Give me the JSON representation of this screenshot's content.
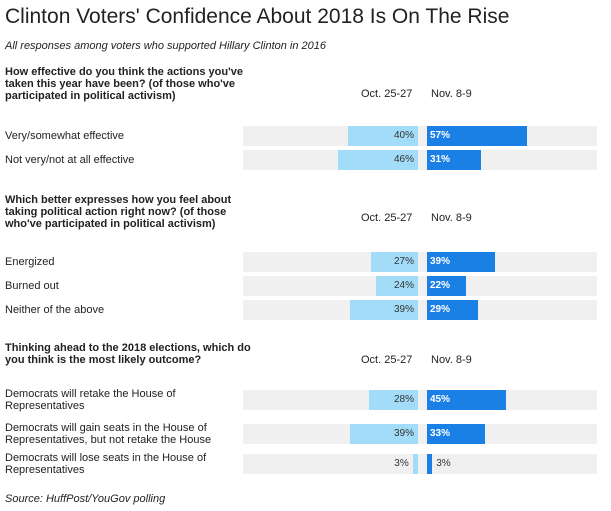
{
  "title": "Clinton Voters' Confidence About 2018 Is On The Rise",
  "subtitle": "All responses among voters who supported Hillary Clinton in 2016",
  "source": "Source: HuffPost/YouGov polling",
  "colors": {
    "old": "#a3dcf8",
    "new": "#1a80e6",
    "track": "#f0f0f0"
  },
  "chart_data": {
    "type": "bar",
    "orientation": "horizontal",
    "series_names": [
      "Oct. 25-27",
      "Nov. 8-9"
    ],
    "panels": [
      {
        "question": "How effective do you think the actions you've taken this year have been? (of those who've participated in political activism)",
        "headers": [
          "Oct. 25-27",
          "Nov. 8-9"
        ],
        "rows": [
          {
            "label": "Very/somewhat effective",
            "old": 40,
            "new": 57,
            "old_label": "40%",
            "new_label": "57%"
          },
          {
            "label": "Not very/not at all effective",
            "old": 46,
            "new": 31,
            "old_label": "46%",
            "new_label": "31%"
          }
        ]
      },
      {
        "question": "Which better expresses how you feel about taking political action right now? (of those who've participated in political activism)",
        "headers": [
          "Oct. 25-27",
          "Nov. 8-9"
        ],
        "rows": [
          {
            "label": "Energized",
            "old": 27,
            "new": 39,
            "old_label": "27%",
            "new_label": "39%"
          },
          {
            "label": "Burned out",
            "old": 24,
            "new": 22,
            "old_label": "24%",
            "new_label": "22%"
          },
          {
            "label": "Neither of the above",
            "old": 39,
            "new": 29,
            "old_label": "39%",
            "new_label": "29%"
          }
        ]
      },
      {
        "question": "Thinking ahead to the 2018 elections, which do you think is the most likely outcome?",
        "headers": [
          "Oct. 25-27",
          "Nov. 8-9"
        ],
        "rows": [
          {
            "label": "Democrats will retake the House of Representatives",
            "old": 28,
            "new": 45,
            "old_label": "28%",
            "new_label": "45%"
          },
          {
            "label": "Democrats will gain seats in the House of Representatives, but not retake the House",
            "old": 39,
            "new": 33,
            "old_label": "39%",
            "new_label": "33%"
          },
          {
            "label": "Democrats will lose seats in the House of Representatives",
            "old": 3,
            "new": 3,
            "old_label": "3%",
            "new_label": "3%"
          }
        ]
      }
    ]
  }
}
